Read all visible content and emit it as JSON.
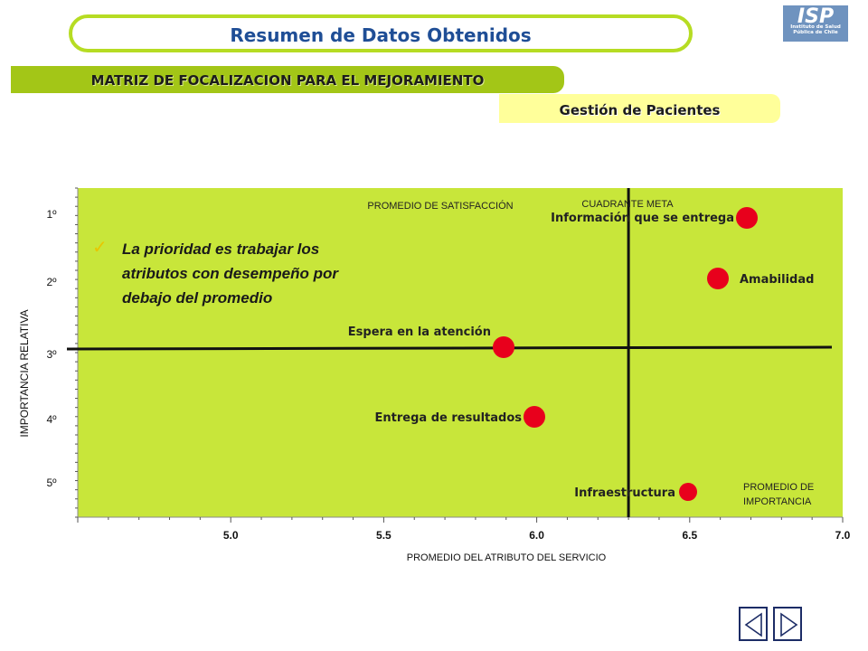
{
  "header": {
    "title": "Resumen de Datos Obtenidos",
    "logo_text": "ISP",
    "logo_subtext": "Instituto de Salud Pública de Chile"
  },
  "banner": {
    "matrix_title": "MATRIZ DE FOCALIZACION PARA EL MEJORAMIENTO",
    "section": "Gestión de Pacientes"
  },
  "chart_data": {
    "type": "scatter",
    "xlabel": "PROMEDIO DEL ATRIBUTO  DEL SERVICIO",
    "ylabel": "IMPORTANCIA RELATIVA",
    "xlim": [
      4.5,
      7.0
    ],
    "ylim": [
      1.0,
      5.9
    ],
    "x_ticks": [
      "5.0",
      "5.5",
      "6.0",
      "6.5",
      "7.0"
    ],
    "y_ticks": [
      "1º",
      "2º",
      "3º",
      "4º",
      "5º"
    ],
    "vertical_line_x": 6.3,
    "horizontal_line_y": 3.0,
    "background_color": "#c8e63a",
    "point_color": "#e8001c",
    "points": [
      {
        "label": "Información que se entrega",
        "x": 6.7,
        "y": 1.05
      },
      {
        "label": "Amabilidad",
        "x": 6.6,
        "y": 1.9
      },
      {
        "label": "Espera en la atención",
        "x": 5.9,
        "y": 2.95
      },
      {
        "label": "Entrega de resultados",
        "x": 6.0,
        "y": 4.0
      },
      {
        "label": "Infraestructura",
        "x": 6.5,
        "y": 5.0
      }
    ],
    "annotations": {
      "satisfaction_avg": "PROMEDIO DE SATISFACCIÓN",
      "target_quadrant": "CUADRANTE  META",
      "importance_avg_line1": "PROMEDIO DE",
      "importance_avg_line2": "IMPORTANCIA"
    },
    "note_lines": [
      "La prioridad es trabajar los",
      "atributos con desempeño por",
      "debajo del promedio"
    ]
  },
  "navigation": {
    "prev": "previous-slide",
    "next": "next-slide"
  }
}
